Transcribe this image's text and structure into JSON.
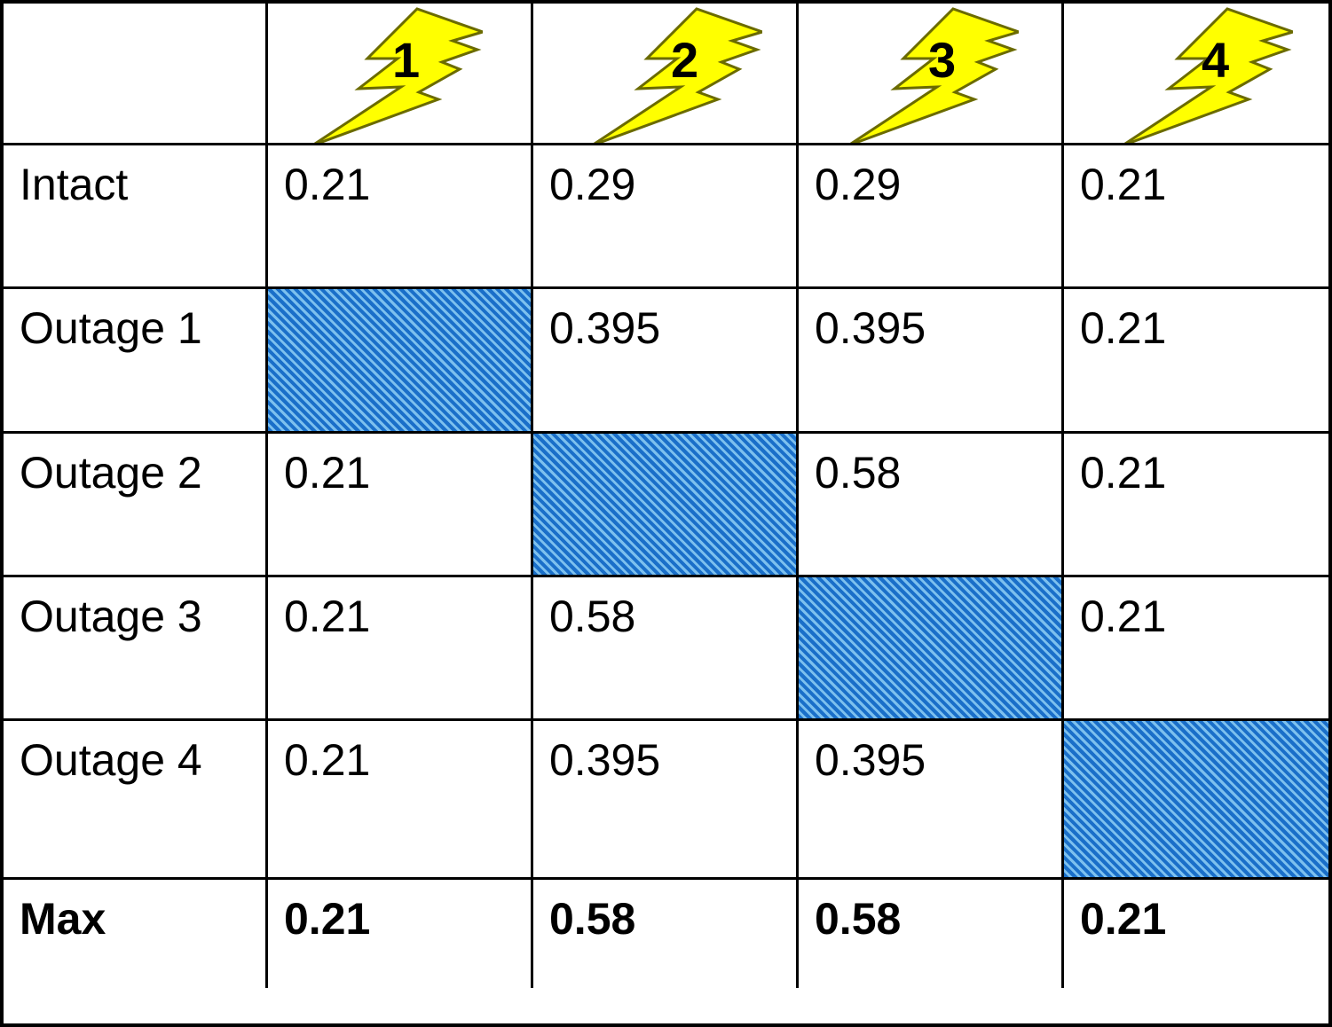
{
  "columns": [
    {
      "label": "1",
      "icon": "lightning-bolt-icon"
    },
    {
      "label": "2",
      "icon": "lightning-bolt-icon"
    },
    {
      "label": "3",
      "icon": "lightning-bolt-icon"
    },
    {
      "label": "4",
      "icon": "lightning-bolt-icon"
    }
  ],
  "rows": [
    {
      "label": "Intact",
      "values": [
        "0.21",
        "0.29",
        "0.29",
        "0.21"
      ]
    },
    {
      "label": "Outage 1",
      "values": [
        "",
        "0.395",
        "0.395",
        "0.21"
      ]
    },
    {
      "label": "Outage 2",
      "values": [
        "0.21",
        "",
        "0.58",
        "0.21"
      ]
    },
    {
      "label": "Outage 3",
      "values": [
        "0.21",
        "0.58",
        "",
        "0.21"
      ]
    },
    {
      "label": "Outage 4",
      "values": [
        "0.21",
        "0.395",
        "0.395",
        ""
      ]
    }
  ],
  "max_row": {
    "label": "Max",
    "values": [
      "0.21",
      "0.58",
      "0.58",
      "0.21"
    ]
  },
  "colors": {
    "bolt_fill": "#ffff00",
    "bolt_stroke": "#6b6b00",
    "hatch_dark": "#1a6fc9",
    "hatch_light": "#7cc0ee",
    "grid_line": "#000000"
  }
}
